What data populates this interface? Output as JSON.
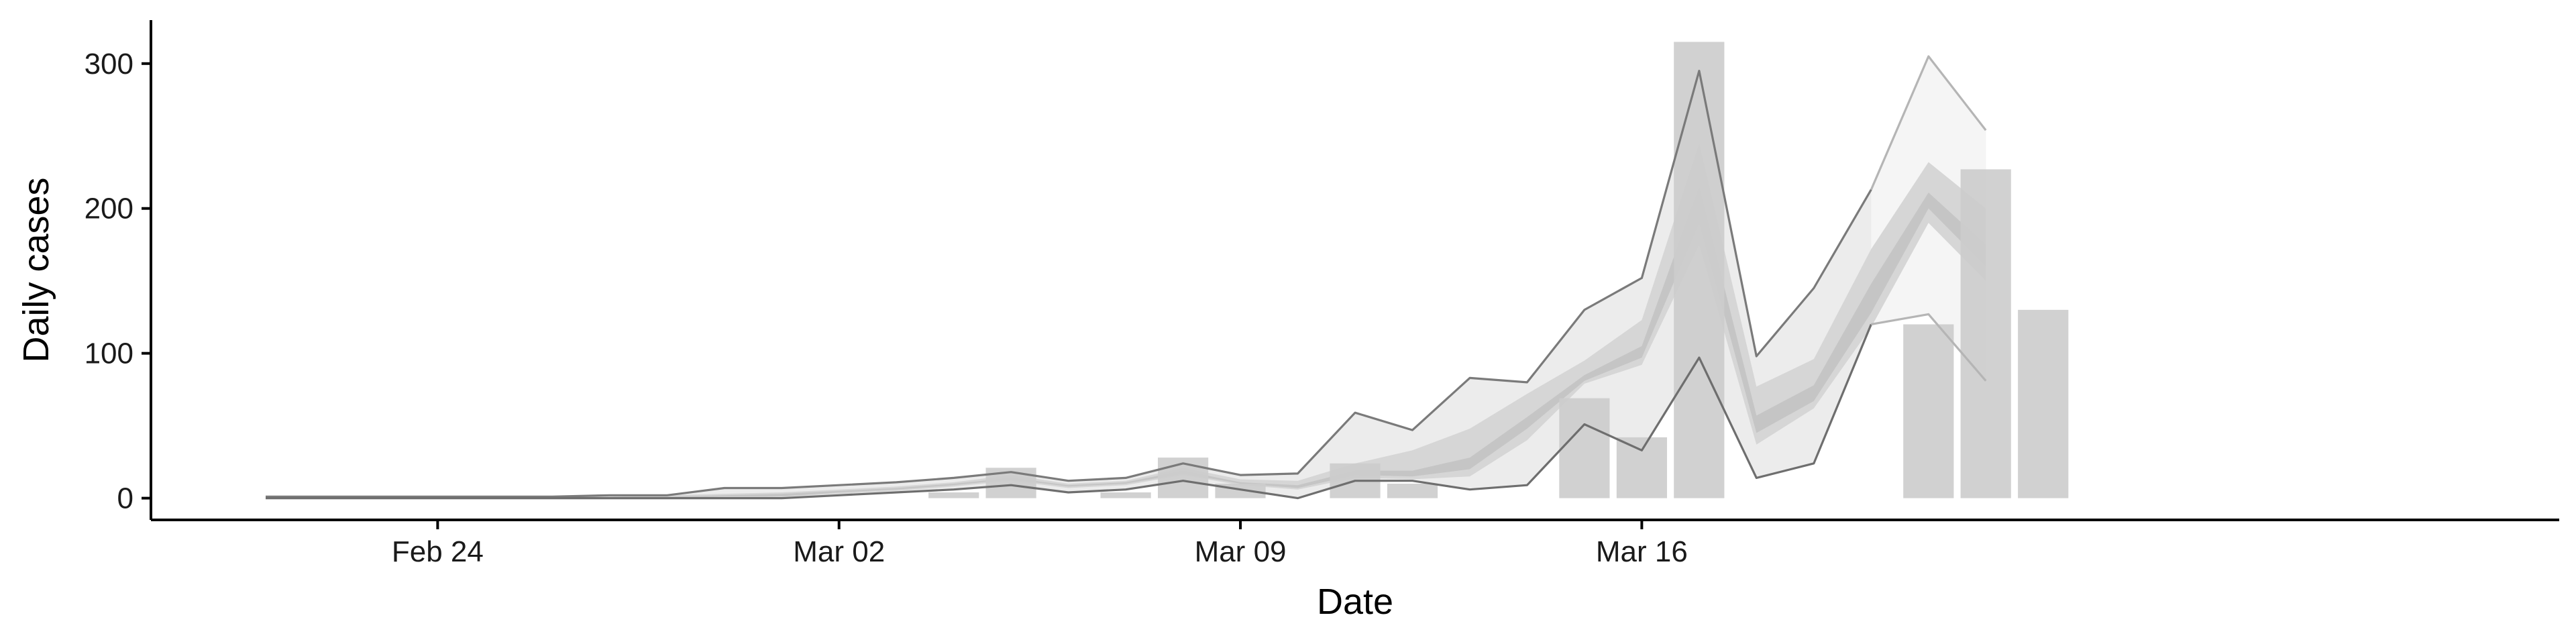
{
  "chart_data": {
    "type": "bar",
    "title": "",
    "xlabel": "Date",
    "ylabel": "Daily cases",
    "x_ticks": [
      {
        "date": "2020-02-24",
        "label": "Feb 24"
      },
      {
        "date": "2020-03-02",
        "label": "Mar 02"
      },
      {
        "date": "2020-03-09",
        "label": "Mar 09"
      },
      {
        "date": "2020-03-16",
        "label": "Mar 16"
      }
    ],
    "y_ticks": [
      0,
      100,
      200,
      300
    ],
    "xlim": [
      "2020-02-19",
      "2020-04-01"
    ],
    "ylim": [
      -15,
      330
    ],
    "grid": false,
    "legend": "none",
    "colors": {
      "bars": "#cccccc",
      "band_outer": "#ececec",
      "band_mid": "#d6d6d6",
      "band_inner": "#b8b8b8",
      "band_recent": "#f5f5f5",
      "line_upper": "#7a7a7a",
      "line_lower": "#6e6e6e",
      "line_recent": "#b5b5b5",
      "axis": "#000000"
    },
    "bars": [
      {
        "date": "2020-03-04",
        "value": 4
      },
      {
        "date": "2020-03-05",
        "value": 21
      },
      {
        "date": "2020-03-07",
        "value": 4
      },
      {
        "date": "2020-03-08",
        "value": 28
      },
      {
        "date": "2020-03-09",
        "value": 10
      },
      {
        "date": "2020-03-11",
        "value": 24
      },
      {
        "date": "2020-03-12",
        "value": 10
      },
      {
        "date": "2020-03-15",
        "value": 69
      },
      {
        "date": "2020-03-16",
        "value": 42
      },
      {
        "date": "2020-03-17",
        "value": 315
      },
      {
        "date": "2020-03-21",
        "value": 120
      },
      {
        "date": "2020-03-22",
        "value": 227
      },
      {
        "date": "2020-03-23",
        "value": 130
      }
    ],
    "series": [
      {
        "dates": [
          "2020-02-21",
          "2020-02-22",
          "2020-02-23",
          "2020-02-24",
          "2020-02-25",
          "2020-02-26",
          "2020-02-27",
          "2020-02-28",
          "2020-02-29",
          "2020-03-01",
          "2020-03-02",
          "2020-03-03",
          "2020-03-04",
          "2020-03-05",
          "2020-03-06",
          "2020-03-07",
          "2020-03-08",
          "2020-03-09",
          "2020-03-10",
          "2020-03-11",
          "2020-03-12",
          "2020-03-13",
          "2020-03-14",
          "2020-03-15",
          "2020-03-16",
          "2020-03-17",
          "2020-03-18",
          "2020-03-19",
          "2020-03-20",
          "2020-03-21",
          "2020-03-22",
          "2020-03-23"
        ],
        "upper": [
          1,
          1,
          1,
          1,
          1,
          1,
          2,
          2,
          7,
          7,
          9,
          11,
          14,
          18,
          12,
          14,
          24,
          16,
          17,
          59,
          47,
          83,
          80,
          130,
          152,
          295,
          98,
          145,
          213,
          305,
          254,
          null
        ],
        "lower": [
          0,
          0,
          0,
          0,
          0,
          0,
          0,
          0,
          0,
          0,
          2,
          4,
          6,
          9,
          4,
          6,
          12,
          6,
          0,
          12,
          12,
          6,
          9,
          51,
          33,
          97,
          14,
          24,
          120,
          127,
          81,
          null
        ],
        "outer_hi": [
          1,
          1,
          1,
          1,
          1,
          1,
          1,
          2,
          3,
          4,
          6,
          8,
          11,
          16,
          10,
          12,
          21,
          13,
          12,
          24,
          33,
          48,
          72,
          95,
          123,
          245,
          77,
          96,
          172,
          232,
          200,
          null
        ],
        "outer_lo": [
          0,
          0,
          0,
          0,
          0,
          0,
          0,
          0,
          0,
          1,
          3,
          5,
          8,
          12,
          7,
          9,
          16,
          9,
          6,
          14,
          13,
          15,
          40,
          79,
          92,
          175,
          37,
          62,
          118,
          190,
          150,
          null
        ],
        "inner_hi": [
          1,
          1,
          1,
          1,
          1,
          1,
          1,
          1,
          2,
          3,
          5,
          7,
          10,
          14,
          9,
          11,
          19,
          11,
          9,
          19,
          19,
          28,
          56,
          85,
          105,
          215,
          57,
          78,
          148,
          211,
          175,
          null
        ],
        "inner_lo": [
          0,
          0,
          0,
          0,
          0,
          0,
          0,
          0,
          1,
          1,
          4,
          6,
          9,
          13,
          8,
          10,
          17,
          10,
          7,
          16,
          15,
          20,
          48,
          81,
          97,
          190,
          45,
          67,
          128,
          200,
          160,
          null
        ],
        "recent_from": "2020-03-20",
        "recent_upper_end": 254,
        "recent_lower_end": 81
      }
    ]
  }
}
